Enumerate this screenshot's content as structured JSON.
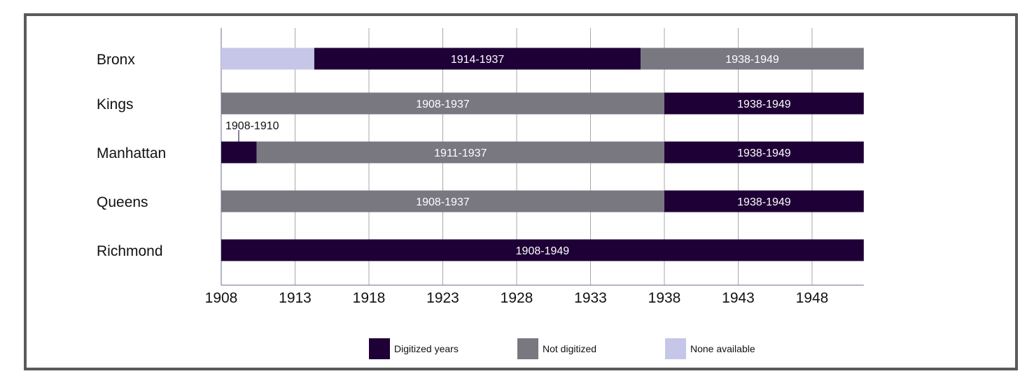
{
  "chart_data": {
    "type": "bar",
    "subtype": "horizontal-stacked-timeline",
    "categories": [
      "Bronx",
      "Kings",
      "Manhattan",
      "Queens",
      "Richmond"
    ],
    "xlim": [
      1908,
      1951.5
    ],
    "xticks": [
      1908,
      1913,
      1918,
      1923,
      1928,
      1933,
      1938,
      1943,
      1948
    ],
    "grid": true,
    "legend_position": "bottom",
    "status_colors": {
      "digitized": "#1e0036",
      "not_digitized": "#797780",
      "none": "#c6c6e8"
    },
    "legend": [
      {
        "key": "digitized",
        "label": "Digitized years"
      },
      {
        "key": "not_digitized",
        "label": "Not digitized"
      },
      {
        "key": "none",
        "label": "None available"
      }
    ],
    "rows": [
      {
        "name": "Bronx",
        "segments": [
          {
            "start": 1908,
            "end": 1914.3,
            "status": "none",
            "label": ""
          },
          {
            "start": 1914.3,
            "end": 1936.4,
            "status": "digitized",
            "label": "1914-1937"
          },
          {
            "start": 1936.4,
            "end": 1951.5,
            "status": "not_digitized",
            "label": "1938-1949"
          }
        ]
      },
      {
        "name": "Kings",
        "segments": [
          {
            "start": 1908,
            "end": 1938,
            "status": "not_digitized",
            "label": "1908-1937"
          },
          {
            "start": 1938,
            "end": 1951.5,
            "status": "digitized",
            "label": "1938-1949"
          }
        ]
      },
      {
        "name": "Manhattan",
        "segments": [
          {
            "start": 1908,
            "end": 1910.4,
            "status": "digitized",
            "label": "1908-1910",
            "callout": true
          },
          {
            "start": 1910.4,
            "end": 1938,
            "status": "not_digitized",
            "label": "1911-1937"
          },
          {
            "start": 1938,
            "end": 1951.5,
            "status": "digitized",
            "label": "1938-1949"
          }
        ]
      },
      {
        "name": "Queens",
        "segments": [
          {
            "start": 1908,
            "end": 1938,
            "status": "not_digitized",
            "label": "1908-1937"
          },
          {
            "start": 1938,
            "end": 1951.5,
            "status": "digitized",
            "label": "1938-1949"
          }
        ]
      },
      {
        "name": "Richmond",
        "segments": [
          {
            "start": 1908,
            "end": 1951.5,
            "status": "digitized",
            "label": "1908-1949"
          }
        ]
      }
    ]
  }
}
